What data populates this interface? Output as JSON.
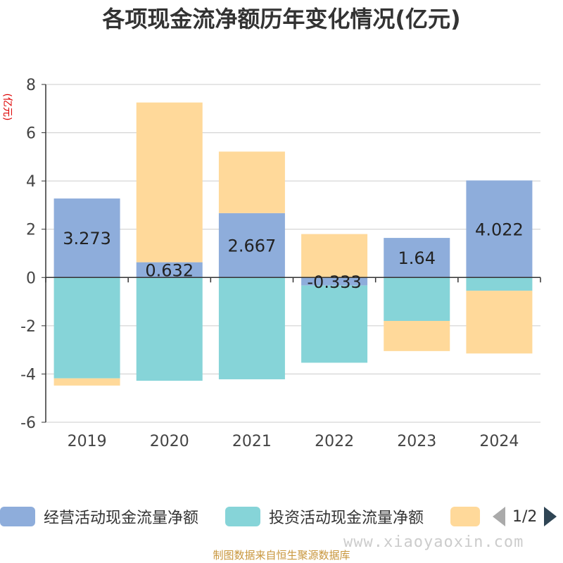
{
  "title": "各项现金流净额历年变化情况(亿元)",
  "legend": {
    "items": [
      {
        "label": "经营活动现金流量净额",
        "color": "#8eaddb"
      },
      {
        "label": "投资活动现金流量净额",
        "color": "#86d4d8"
      },
      {
        "label": "",
        "color": "#ffd99a"
      }
    ],
    "pager": "1/2"
  },
  "watermark": "www.xiaoyaoxin.com",
  "source": "制图数据来自恒生聚源数据库",
  "chart_data": {
    "type": "bar",
    "stacked": true,
    "categories": [
      "2019",
      "2020",
      "2021",
      "2022",
      "2023",
      "2024"
    ],
    "ylabel": "(亿元)",
    "ylim": [
      -6,
      8
    ],
    "yticks": [
      -6,
      -4,
      -2,
      0,
      2,
      4,
      6,
      8
    ],
    "grid": true,
    "legend_position": "bottom",
    "series": [
      {
        "name": "经营活动现金流量净额",
        "color": "#8eaddb",
        "values": [
          3.273,
          0.632,
          2.667,
          -0.333,
          1.64,
          4.022
        ],
        "labels": [
          "3.273",
          "0.632",
          "2.667",
          "-0.333",
          "1.64",
          "4.022"
        ]
      },
      {
        "name": "投资活动现金流量净额",
        "color": "#86d4d8",
        "values": [
          -4.18,
          -4.28,
          -4.22,
          -3.2,
          -1.8,
          -0.55
        ]
      },
      {
        "name": "",
        "color": "#ffd99a",
        "values": [
          -0.3,
          6.62,
          2.55,
          1.8,
          -1.25,
          -2.6
        ]
      }
    ]
  }
}
